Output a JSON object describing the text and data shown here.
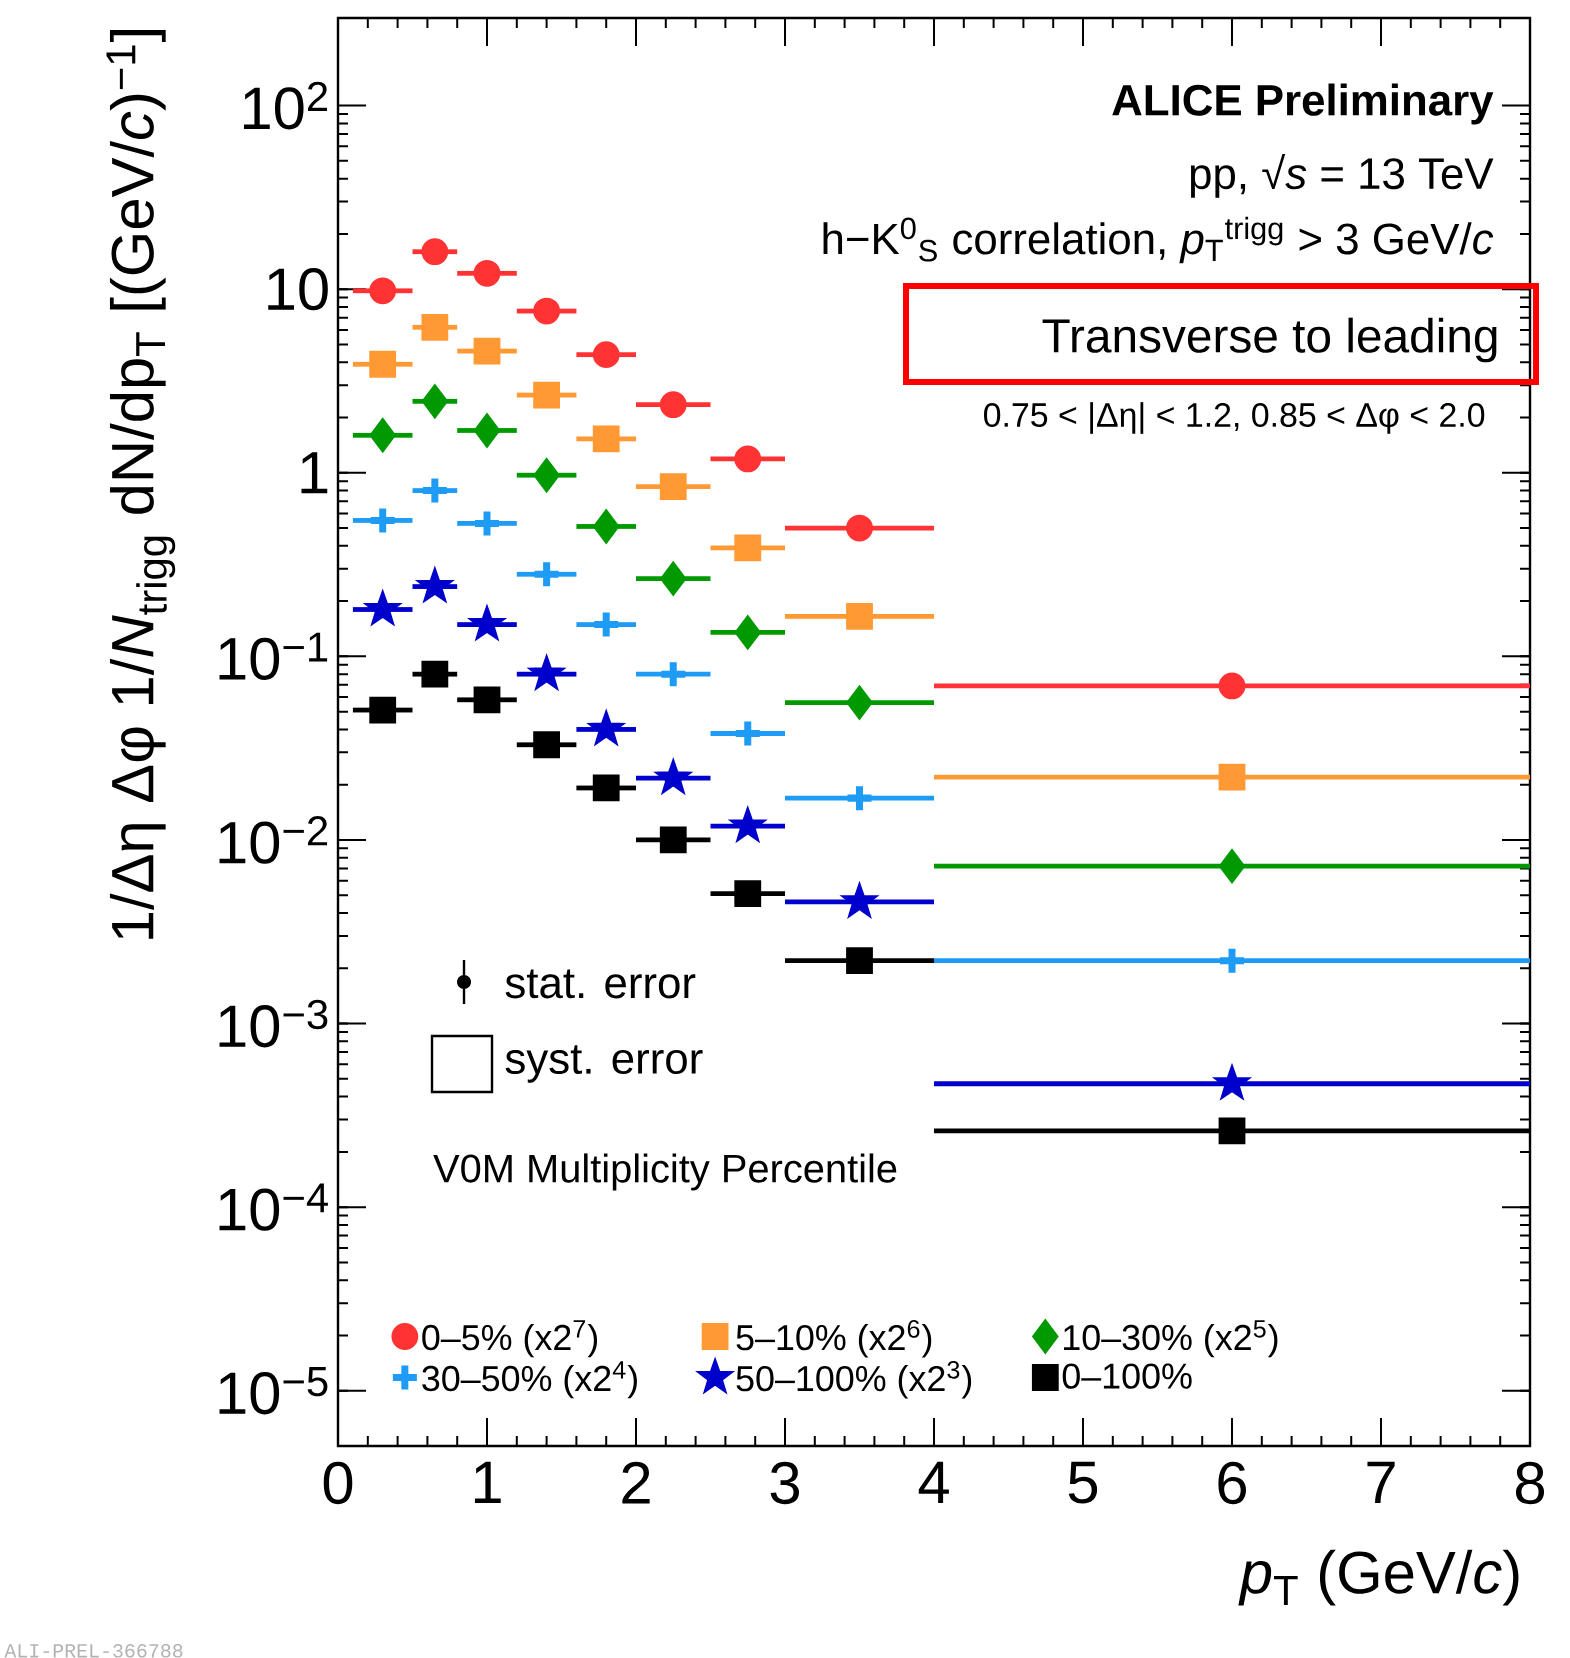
{
  "chart_data": {
    "type": "scatter",
    "xlabel": "*p*$_{T}$ (GeV/*c*)",
    "ylabel": "1/Δη Δφ 1/*N*$_{trigg}$ dN/dp$_{T}$ [(GeV/*c*)$^{−1}$]",
    "legend_title": "V0M Multiplicity Percentile",
    "annotations": [
      "ALICE Preliminary",
      "pp, √*s* = 13 TeV",
      "h−K$^{0}$$_{S}$ correlation, *p*$_{T}$$^{trigg}$ > 3 GeV/*c*",
      "Transverse to leading",
      "0.75 < |Δη| < 1.2, 0.85 < Δφ < 2.0",
      "stat. error",
      "syst. error",
      "ALI-PREL-366788"
    ],
    "x": [
      0.3,
      0.65,
      1.0,
      1.4,
      1.8,
      2.25,
      2.75,
      3.5,
      6.0
    ],
    "series": [
      {
        "name": "0–5% (x2$^{7}$)",
        "color": "#ff3333",
        "marker": "circle",
        "values": [
          9.8,
          16,
          12.2,
          7.6,
          4.4,
          2.35,
          1.19,
          0.5,
          0.069
        ],
        "xerrors": [
          0.2,
          0.15,
          0.2,
          0.2,
          0.2,
          0.25,
          0.25,
          0.5,
          2.0
        ]
      },
      {
        "name": "5–10% (x2$^{6}$)",
        "color": "#ff9933",
        "marker": "square",
        "values": [
          3.9,
          6.2,
          4.6,
          2.65,
          1.53,
          0.84,
          0.39,
          0.165,
          0.022
        ],
        "xerrors": [
          0.2,
          0.15,
          0.2,
          0.2,
          0.2,
          0.25,
          0.25,
          0.5,
          2.0
        ]
      },
      {
        "name": "10–30% (x2$^{5}$)",
        "color": "#009900",
        "marker": "diamond",
        "values": [
          1.6,
          2.45,
          1.7,
          0.97,
          0.51,
          0.265,
          0.135,
          0.056,
          0.0072
        ],
        "xerrors": [
          0.2,
          0.15,
          0.2,
          0.2,
          0.2,
          0.25,
          0.25,
          0.5,
          2.0
        ]
      },
      {
        "name": "30–50% (x2$^{4}$)",
        "color": "#1e9bf5",
        "marker": "cross",
        "values": [
          0.55,
          0.8,
          0.53,
          0.28,
          0.149,
          0.08,
          0.038,
          0.0169,
          0.0022
        ],
        "xerrors": [
          0.2,
          0.15,
          0.2,
          0.2,
          0.2,
          0.25,
          0.25,
          0.5,
          2.0
        ]
      },
      {
        "name": "50–100% (x2$^{3}$)",
        "color": "#0000cc",
        "marker": "star",
        "values": [
          0.18,
          0.24,
          0.149,
          0.08,
          0.04,
          0.0217,
          0.0119,
          0.0046,
          0.00047
        ],
        "xerrors": [
          0.2,
          0.15,
          0.2,
          0.2,
          0.2,
          0.25,
          0.25,
          0.5,
          2.0
        ]
      },
      {
        "name": "0–100%",
        "color": "#000000",
        "marker": "square",
        "values": [
          0.051,
          0.08,
          0.058,
          0.033,
          0.0192,
          0.01,
          0.0051,
          0.0022,
          0.00026
        ],
        "xerrors": [
          0.2,
          0.15,
          0.2,
          0.2,
          0.2,
          0.25,
          0.25,
          0.5,
          2.0
        ]
      }
    ],
    "xlim": [
      0,
      8
    ],
    "ylim": [
      5e-06,
      300
    ],
    "log": "y",
    "xticks": [
      0,
      1,
      2,
      3,
      4,
      5,
      6,
      7,
      8
    ],
    "yticks": [
      {
        "value": 1e-05,
        "label": "10$^{−5}$"
      },
      {
        "value": 0.0001,
        "label": "10$^{−4}$"
      },
      {
        "value": 0.001,
        "label": "10$^{−3}$"
      },
      {
        "value": 0.01,
        "label": "10$^{−2}$"
      },
      {
        "value": 0.1,
        "label": "10$^{−1}$"
      },
      1,
      10,
      {
        "value": 100,
        "label": "10$^{2}$"
      }
    ],
    "legend": "bottom left",
    "grid": false
  }
}
